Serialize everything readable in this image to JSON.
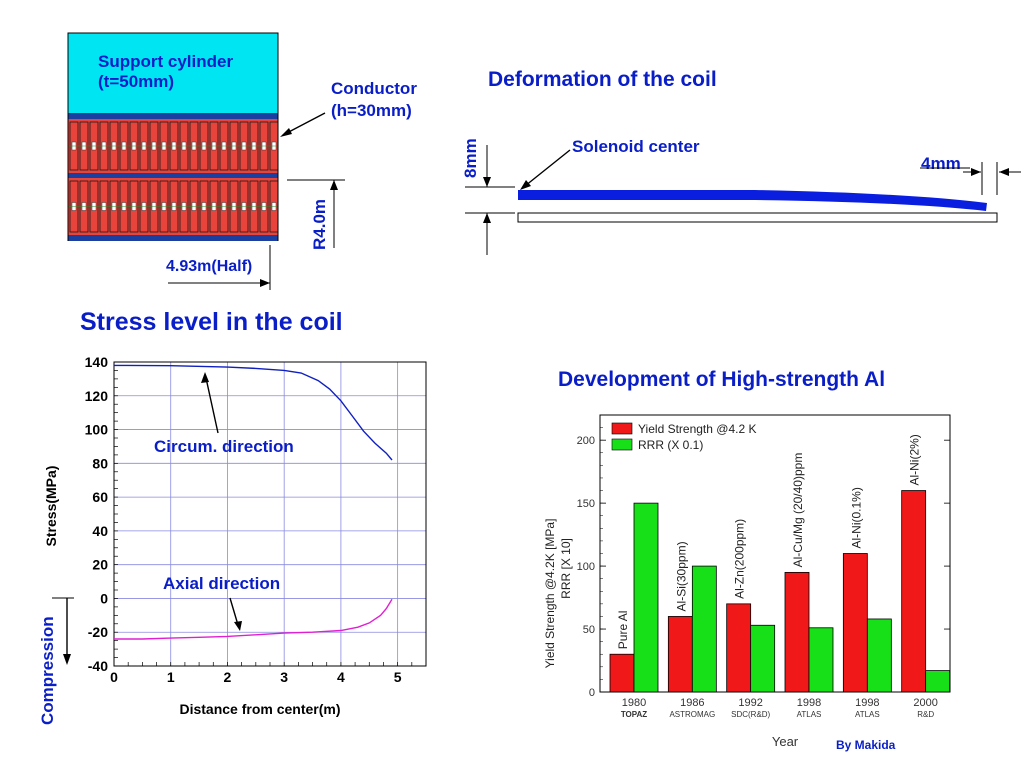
{
  "coil_diagram": {
    "support_label_1": "Support cylinder",
    "support_label_2": "(t=50mm)",
    "conductor_label_1": "Conductor",
    "conductor_label_2": "(h=30mm)",
    "radius_label": "R4.0m",
    "half_length_label": "4.93m(Half)",
    "colors": {
      "support": "#00e5f2",
      "conductor": "#e8443c",
      "band": "#1a3fa0"
    }
  },
  "deformation": {
    "title": "Deformation of the coil",
    "solenoid_label": "Solenoid center",
    "left_dim": "8mm",
    "right_dim": "4mm"
  },
  "stress": {
    "title": "Stress level in the coil",
    "circum_label": "Circum. direction",
    "axial_label": "Axial direction",
    "compression_label": "Compression"
  },
  "alloy": {
    "title": "Development of High-strength Al",
    "credit": "By Makida"
  },
  "chart_data": [
    {
      "type": "line",
      "xlabel": "Distance from center(m)",
      "ylabel": "Stress(MPa)",
      "xlim": [
        0,
        5.5
      ],
      "ylim": [
        -40,
        140
      ],
      "xticks": [
        0,
        1,
        2,
        3,
        4,
        5
      ],
      "yticks": [
        140,
        120,
        100,
        80,
        60,
        40,
        20,
        0,
        -20,
        -40
      ],
      "grid": true,
      "series": [
        {
          "color": "#1020c0",
          "x": [
            0,
            1,
            2,
            2.5,
            3,
            3.3,
            3.6,
            3.8,
            4.0,
            4.2,
            4.4,
            4.6,
            4.8,
            4.9
          ],
          "y": [
            138,
            137.8,
            137,
            136.2,
            135,
            133.5,
            129,
            124,
            117,
            108,
            99,
            92,
            86,
            82
          ]
        },
        {
          "color": "#e020d0",
          "x": [
            0,
            0.5,
            1,
            1.5,
            2,
            2.5,
            3,
            3.5,
            4,
            4.3,
            4.5,
            4.7,
            4.8,
            4.9
          ],
          "y": [
            -24,
            -24,
            -23.5,
            -23,
            -22.5,
            -21.5,
            -20.5,
            -20,
            -19,
            -17,
            -14.5,
            -10,
            -6,
            -0.5
          ]
        }
      ]
    },
    {
      "type": "bar",
      "title": "",
      "ylabel_1": "Yield Strength @4.2K [MPa]",
      "ylabel_2": "RRR [X 10]",
      "xlabel": "Year",
      "ylim": [
        0,
        220
      ],
      "yticks": [
        0,
        50,
        100,
        150,
        200
      ],
      "legend_position": "top-left",
      "categories": [
        "1980",
        "1986",
        "1992",
        "1998",
        "1998",
        "2000"
      ],
      "sublabels": [
        "TOPAZ",
        "ASTROMAG",
        "SDC(R&D)",
        "ATLAS",
        "ATLAS",
        "R&D"
      ],
      "bar_labels": [
        "Pure Al",
        "Al-Si(30ppm)",
        "Al-Zn(200ppm)",
        "Al-Cu/Mg (20/40)ppm",
        "Al-Ni(0.1%)",
        "Al-Ni(2%)"
      ],
      "series": [
        {
          "name": "Yield Strength @4.2 K",
          "color": "#f01818",
          "values": [
            30,
            60,
            70,
            95,
            110,
            160
          ]
        },
        {
          "name": "RRR (X 0.1)",
          "color": "#18e018",
          "values": [
            150,
            100,
            53,
            51,
            58,
            17
          ]
        }
      ]
    }
  ]
}
